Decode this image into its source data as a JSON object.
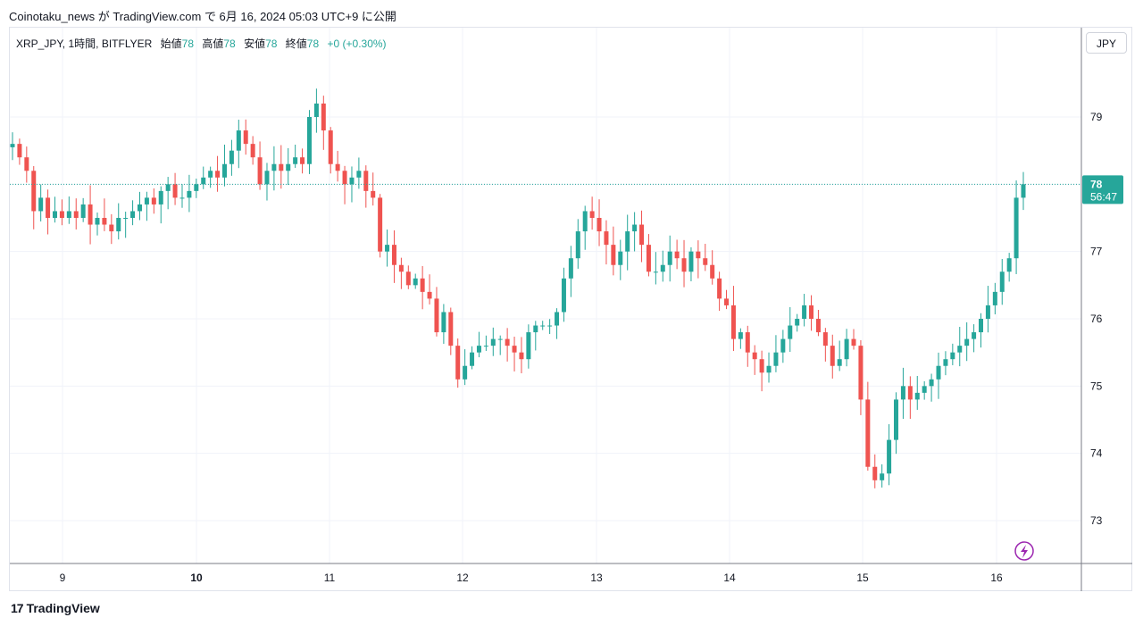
{
  "header": {
    "title": "Coinotaku_news が TradingView.com で 6月 16, 2024 05:03 UTC+9 に公開"
  },
  "legend": {
    "symbol": "XRP_JPY, 1時間, BITFLYER",
    "open_label": "始値",
    "open": "78",
    "high_label": "高値",
    "high": "78",
    "low_label": "安値",
    "low": "78",
    "close_label": "終値",
    "close": "78",
    "change": "+0 (+0.30%)"
  },
  "currency_button": "JPY",
  "price_tag": {
    "price": "78",
    "countdown": "56:47"
  },
  "footer": {
    "brand": "TradingView",
    "logo_text": "17"
  },
  "colors": {
    "up": "#26a69a",
    "down": "#ef5350",
    "grid": "#f0f3fa",
    "lightning": "#9c27b0"
  },
  "icons": {
    "alert": "lightning-icon"
  },
  "chart_data": {
    "type": "candlestick",
    "x_ticks": [
      "9",
      "10",
      "11",
      "12",
      "13",
      "14",
      "15",
      "16"
    ],
    "y_ticks": [
      "73",
      "74",
      "75",
      "76",
      "77",
      "78",
      "79"
    ],
    "ylim": [
      72.4,
      79.8
    ],
    "current_price": 78.0,
    "grid": true,
    "close_series": [
      78.6,
      78.4,
      78.2,
      77.6,
      77.8,
      77.5,
      77.6,
      77.5,
      77.6,
      77.5,
      77.7,
      77.4,
      77.5,
      77.4,
      77.3,
      77.5,
      77.5,
      77.6,
      77.7,
      77.8,
      77.7,
      77.9,
      78.0,
      77.8,
      77.8,
      77.9,
      78.0,
      78.1,
      78.2,
      78.1,
      78.3,
      78.5,
      78.8,
      78.6,
      78.4,
      78.0,
      78.2,
      78.3,
      78.2,
      78.3,
      78.4,
      78.3,
      79.0,
      79.2,
      78.8,
      78.3,
      78.2,
      78.0,
      78.1,
      78.2,
      77.9,
      77.8,
      77.0,
      77.1,
      76.8,
      76.7,
      76.5,
      76.6,
      76.4,
      76.3,
      75.8,
      76.1,
      75.6,
      75.1,
      75.3,
      75.5,
      75.6,
      75.6,
      75.7,
      75.7,
      75.6,
      75.5,
      75.4,
      75.8,
      75.9,
      75.9,
      75.9,
      76.1,
      76.6,
      76.9,
      77.3,
      77.6,
      77.5,
      77.3,
      77.1,
      76.8,
      77.0,
      77.3,
      77.4,
      77.1,
      76.7,
      76.7,
      76.8,
      77.0,
      76.9,
      76.7,
      77.0,
      76.9,
      76.8,
      76.6,
      76.3,
      76.2,
      75.7,
      75.8,
      75.5,
      75.4,
      75.2,
      75.3,
      75.5,
      75.7,
      75.9,
      76.0,
      76.2,
      76.0,
      75.8,
      75.6,
      75.3,
      75.4,
      75.7,
      75.6,
      74.8,
      73.8,
      73.6,
      73.7,
      74.2,
      74.8,
      75.0,
      74.8,
      74.9,
      75.0,
      75.1,
      75.3,
      75.4,
      75.5,
      75.6,
      75.7,
      75.8,
      76.0,
      76.2,
      76.4,
      76.7,
      76.9,
      77.8,
      78.0
    ]
  }
}
